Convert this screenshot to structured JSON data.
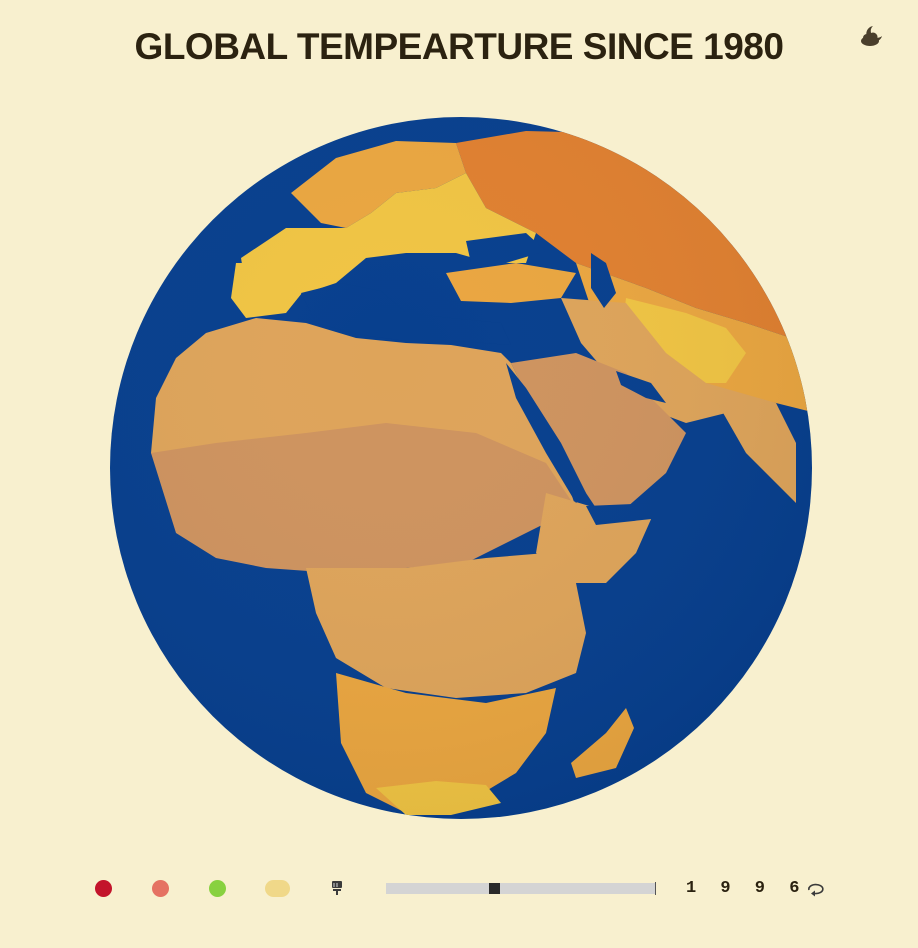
{
  "title": "GLOBAL TEMPEARTURE SINCE 1980",
  "year": "1 9 9 6",
  "timeline": {
    "start": 1980,
    "end": 2020,
    "current": 1996
  },
  "colors": {
    "background": "#f8f0cf",
    "ocean": "#073f8e",
    "title": "#2b2210",
    "legend_red": "#c3142b",
    "legend_salmon": "#e57263",
    "legend_green": "#88d140",
    "legend_sand": "#f0d889",
    "land_hot": "#e08030",
    "land_warm": "#eaa640",
    "land_mild": "#f0c443",
    "land_dry": "#dea45a",
    "land_desert": "#ce935f"
  },
  "icons": {
    "theme": "moon-cloud-icon",
    "brush": "brush-icon",
    "replay": "replay-icon"
  }
}
